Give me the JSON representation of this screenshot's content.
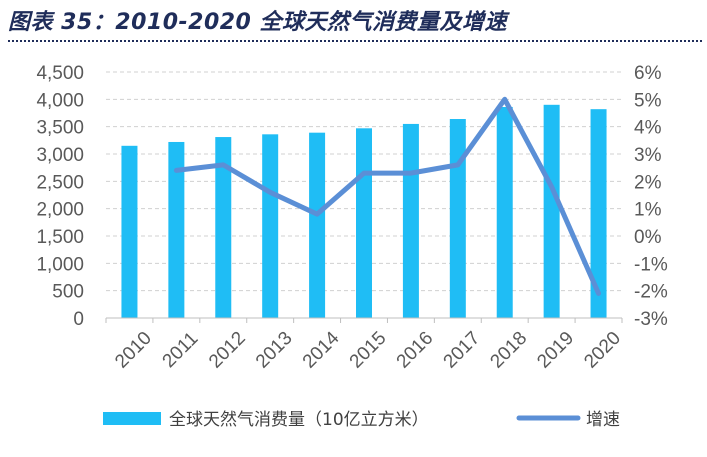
{
  "title": "图表 35：2010-2020 全球天然气消费量及增速",
  "chart_data": {
    "type": "bar",
    "categories": [
      "2010",
      "2011",
      "2012",
      "2013",
      "2014",
      "2015",
      "2016",
      "2017",
      "2018",
      "2019",
      "2020"
    ],
    "series": [
      {
        "name": "全球天然气消费量（10亿立方米）",
        "type": "bar",
        "axis": "left",
        "color": "#1fbdf5",
        "values": [
          3150,
          3220,
          3310,
          3360,
          3390,
          3470,
          3550,
          3640,
          3860,
          3900,
          3820
        ]
      },
      {
        "name": "增速",
        "type": "line",
        "axis": "right",
        "color": "#5b8fd6",
        "values": [
          null,
          2.4,
          2.6,
          1.6,
          0.8,
          2.3,
          2.3,
          2.6,
          5.0,
          1.8,
          -2.1
        ]
      }
    ],
    "yleft": {
      "min": 0,
      "max": 4500,
      "ticks": [
        "0",
        "500",
        "1,000",
        "1,500",
        "2,000",
        "2,500",
        "3,000",
        "3,500",
        "4,000",
        "4,500"
      ]
    },
    "yright": {
      "min": -3,
      "max": 6,
      "ticks": [
        "-3%",
        "-2%",
        "-1%",
        "0%",
        "1%",
        "2%",
        "3%",
        "4%",
        "5%",
        "6%"
      ]
    },
    "grid": true,
    "legend_position": "bottom"
  }
}
